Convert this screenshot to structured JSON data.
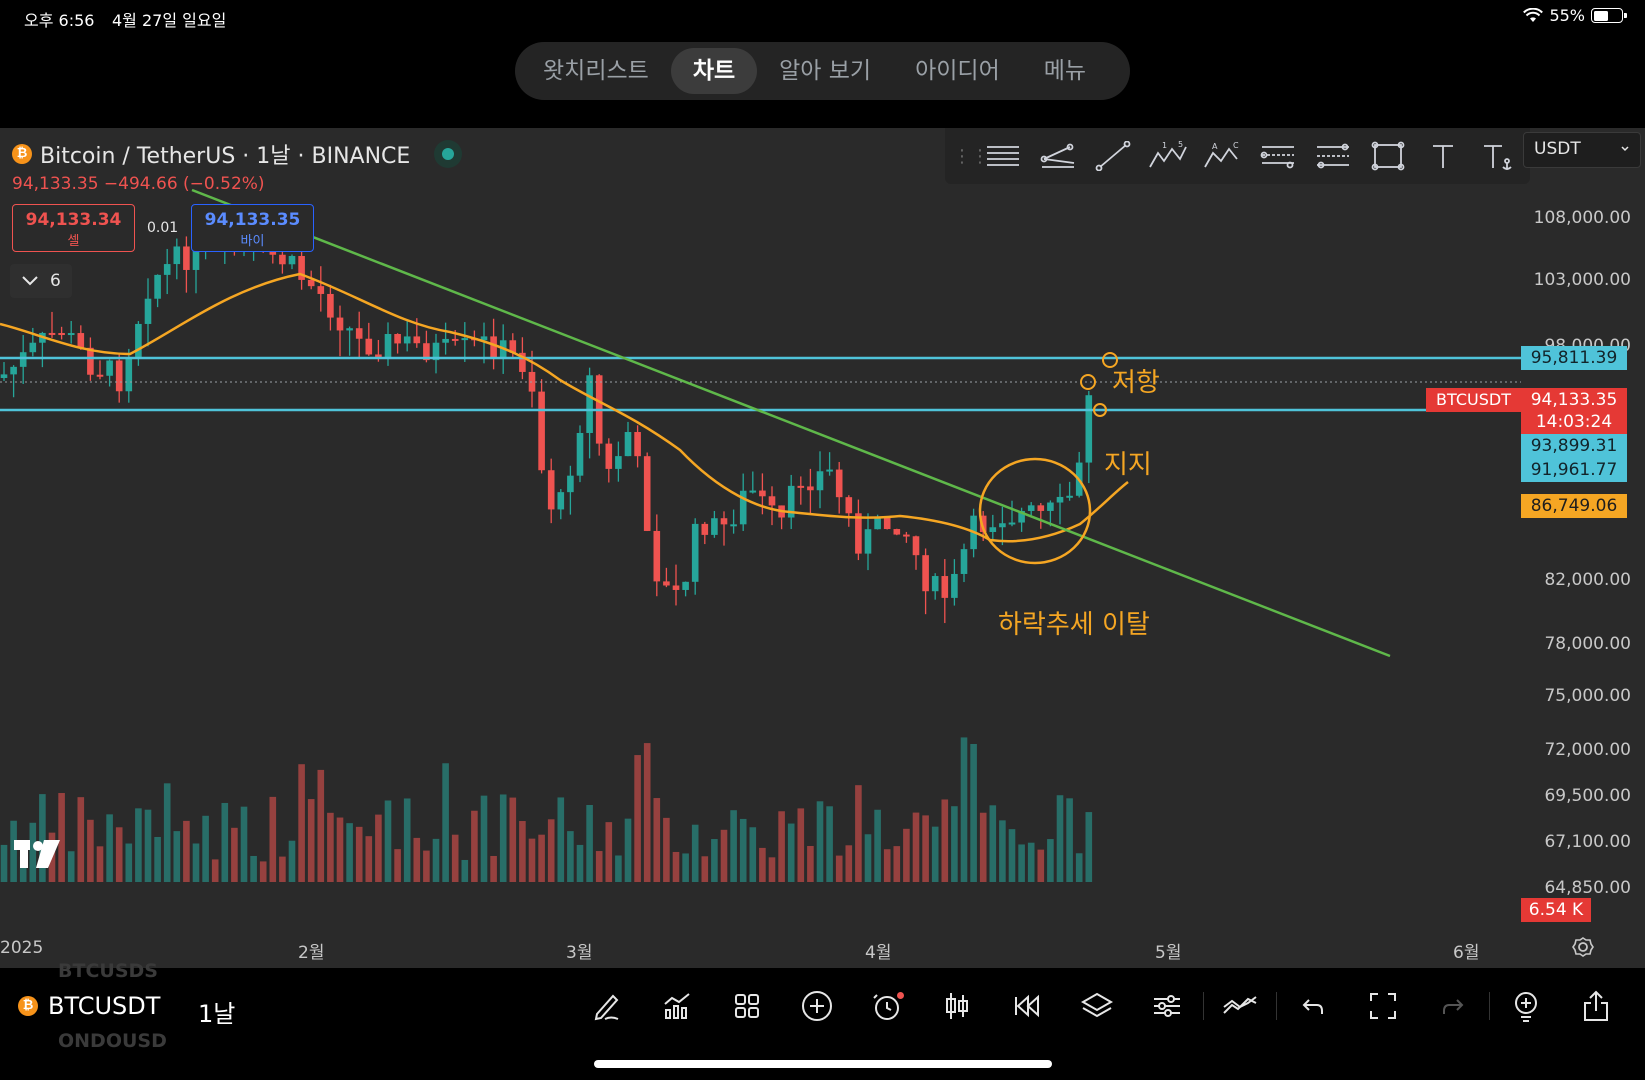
{
  "status_bar": {
    "time": "오후 6:56",
    "date": "4월 27일 일요일",
    "battery": "55%",
    "battery_level": 0.55
  },
  "top_nav": {
    "tabs": [
      {
        "label": "왓치리스트",
        "active": false
      },
      {
        "label": "차트",
        "active": true
      },
      {
        "label": "알아 보기",
        "active": false
      },
      {
        "label": "아이디어",
        "active": false
      },
      {
        "label": "메뉴",
        "active": false
      }
    ]
  },
  "header": {
    "symbol_title": "Bitcoin / TetherUS · 1날 · BINANCE",
    "price_change": "94,133.35 −494.66 (−0.52%)",
    "sell": {
      "price": "94,133.34",
      "label": "셀"
    },
    "buy": {
      "price": "94,133.35",
      "label": "바이"
    },
    "spread": "0.01",
    "indicators_count": "6",
    "currency": "USDT"
  },
  "price_axis": {
    "labels": [
      "108,000.00",
      "103,000.00",
      "98,000.00",
      "82,000.00",
      "78,000.00",
      "75,000.00",
      "72,000.00",
      "69,500.00",
      "67,100.00",
      "64,850.00"
    ],
    "tags": {
      "resistance": "95,811.39",
      "last_price": "94,133.35",
      "countdown": "14:03:24",
      "support_high": "93,899.31",
      "support_low": "91,961.77",
      "ma": "86,749.06",
      "volume": "6.54 K",
      "symbol": "BTCUSDT"
    }
  },
  "time_axis": {
    "labels": [
      "2025",
      "2월",
      "3월",
      "4월",
      "5월",
      "6월"
    ]
  },
  "annotations": {
    "resistance": "저항",
    "support": "지지",
    "breakout": "하락추세 이탈"
  },
  "colors": {
    "up": "#26a69a",
    "down": "#ef5350",
    "ma": "#f5a623",
    "trendline": "#5fb84a",
    "level": "#4fc3d9",
    "background": "#2a2a2a"
  },
  "bottom_bar": {
    "symbol": "BTCUSDT",
    "interval": "1날",
    "ghost_top": "BTCUSDS",
    "ghost_bottom": "ONDOUSD",
    "tools": [
      "pen-icon",
      "indicators-icon",
      "layout-icon",
      "plus-icon",
      "alert-icon",
      "candles-icon",
      "replay-icon",
      "layers-icon",
      "settings-icon",
      "compare-icon",
      "undo-icon",
      "fullscreen-icon",
      "redo-icon",
      "add-idea-icon",
      "share-icon"
    ]
  }
}
